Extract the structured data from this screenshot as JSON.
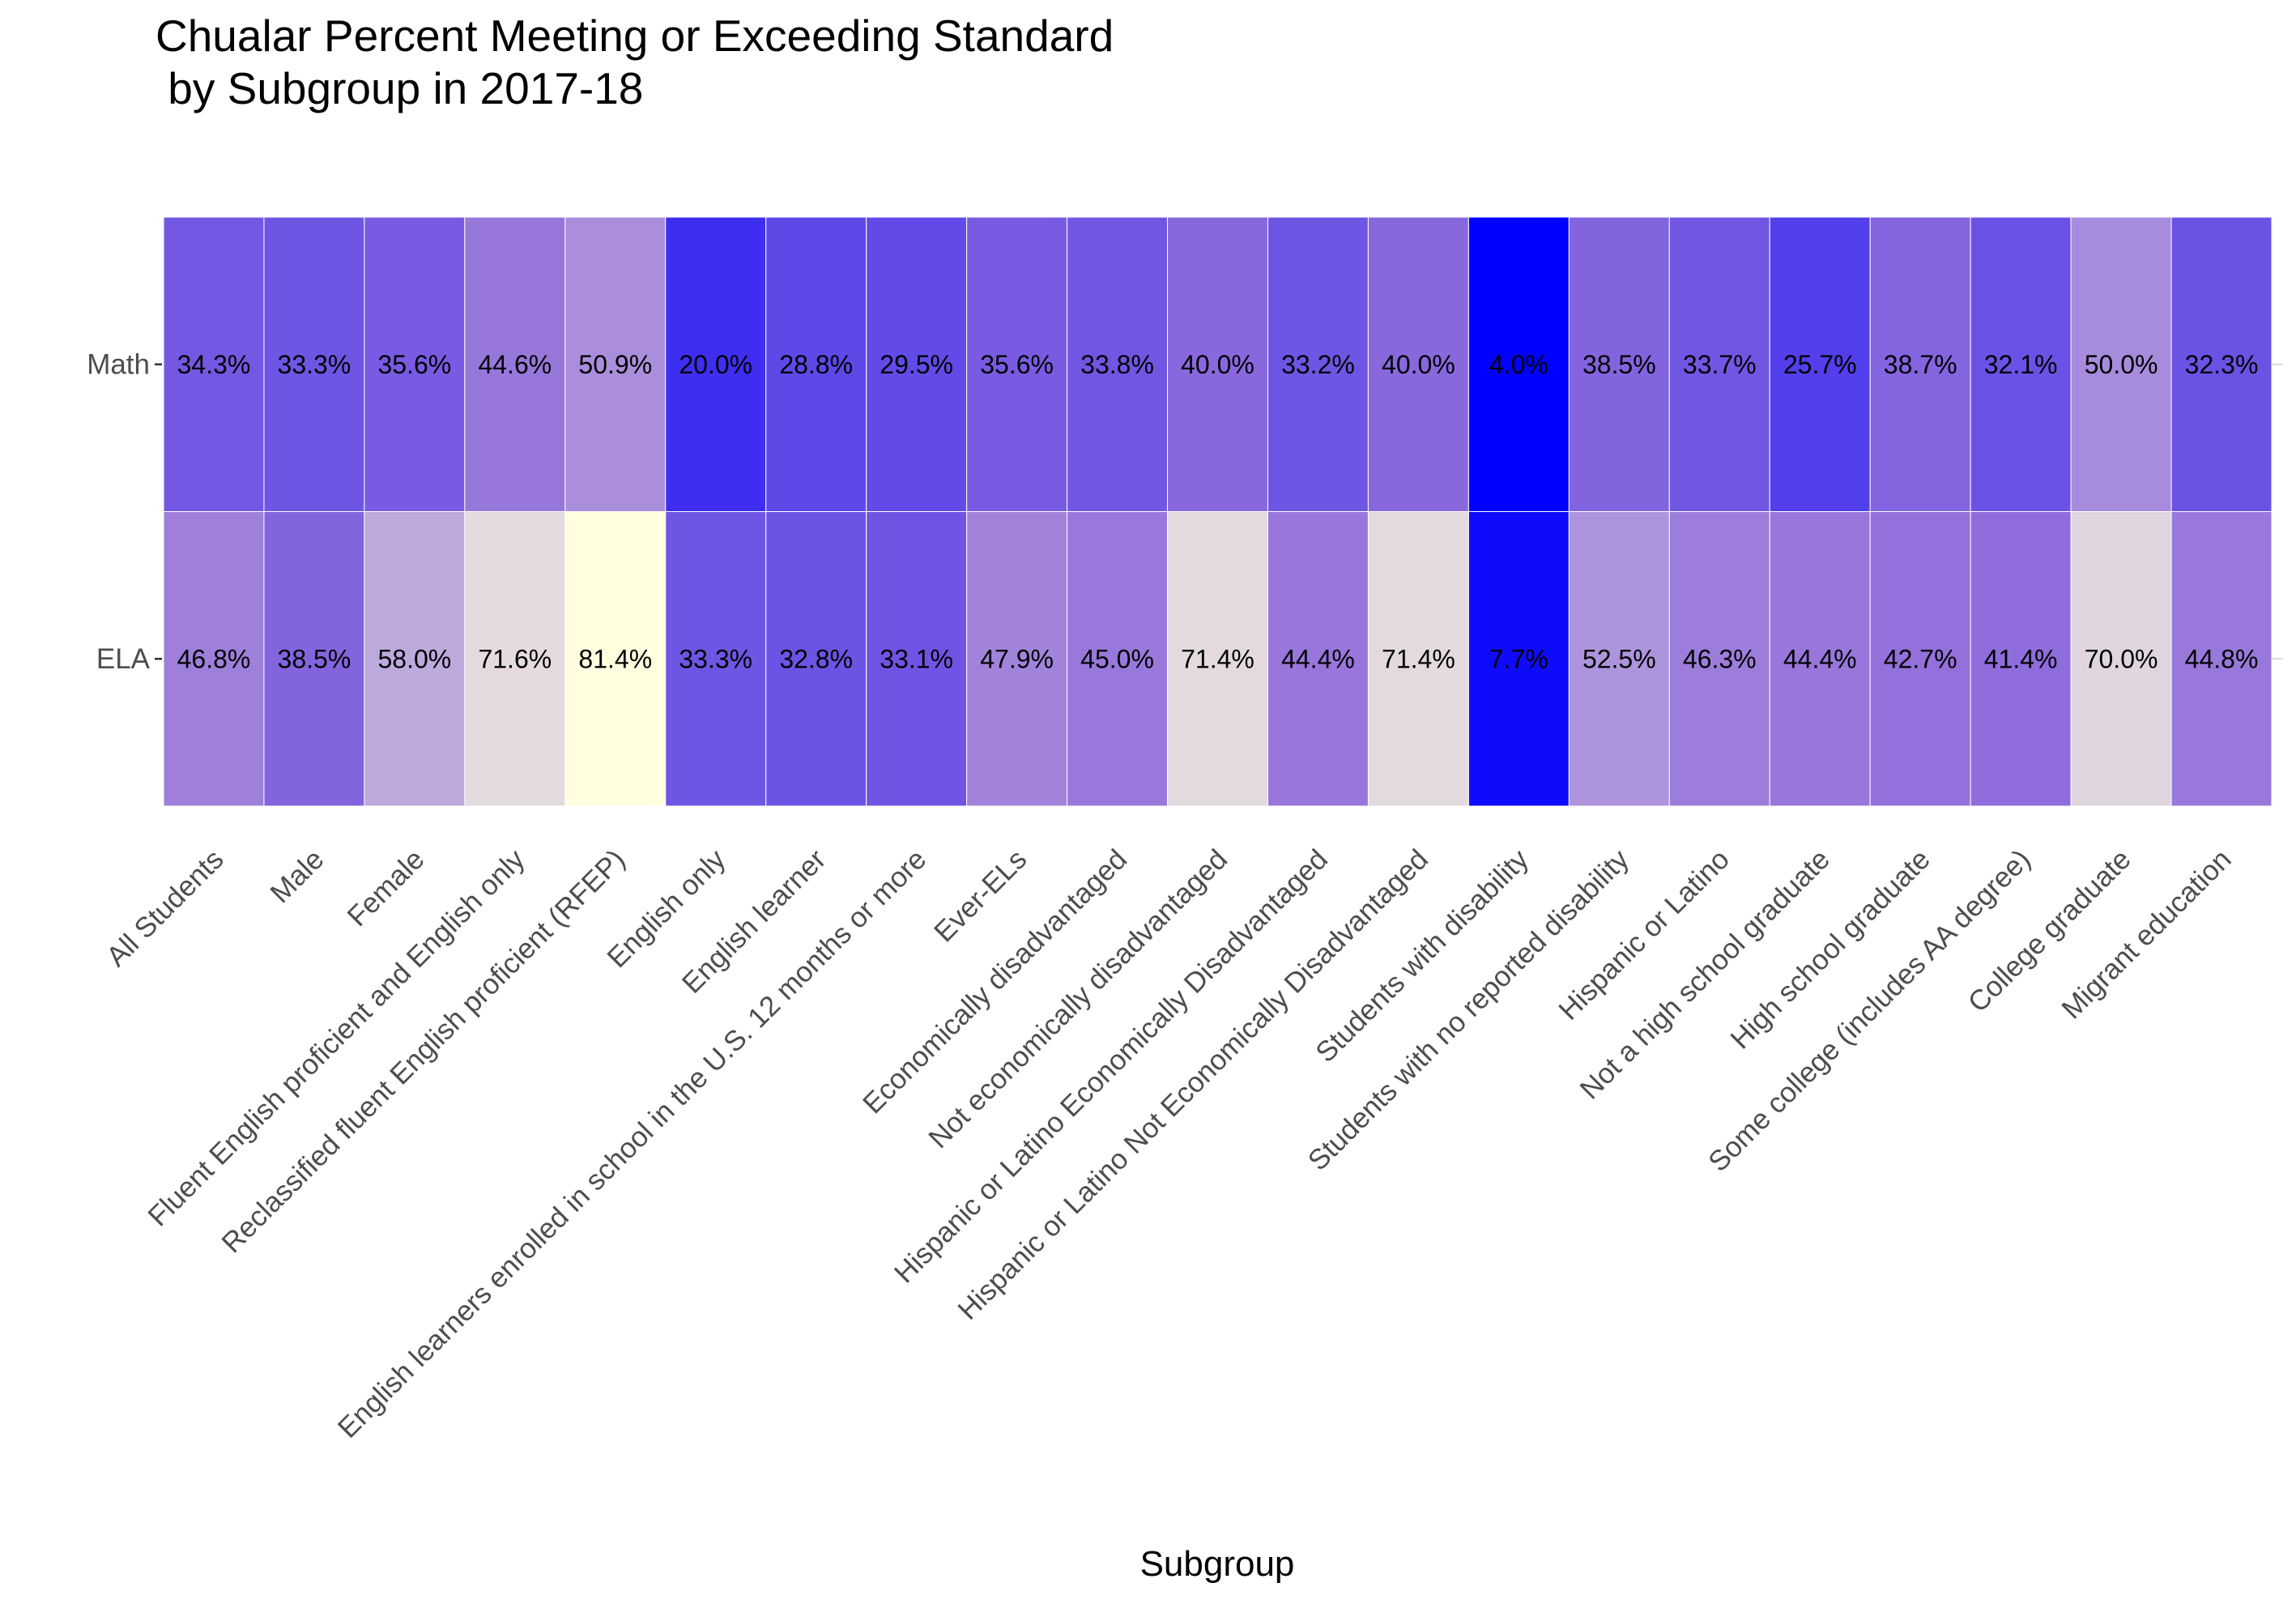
{
  "chart_data": {
    "type": "heatmap",
    "title": "Chualar Percent Meeting or Exceeding Standard",
    "subtitle": " by Subgroup in 2017-18",
    "xlabel": "Subgroup",
    "ylabel": "",
    "rows": [
      "Math",
      "ELA"
    ],
    "categories": [
      "All Students",
      "Male",
      "Female",
      "Fluent English proficient and English only",
      "Reclassified fluent English proficient (RFEP)",
      "English only",
      "English learner",
      "English learners enrolled in school in the U.S. 12 months or more",
      "Ever-ELs",
      "Economically disadvantaged",
      "Not economically disadvantaged",
      "Hispanic or Latino Economically Disadvantaged",
      "Hispanic or Latino Not Economically Disadvantaged",
      "Students with disability",
      "Students with no reported disability",
      "Hispanic or Latino",
      "Not a high school graduate",
      "High school graduate",
      "Some college (includes AA degree)",
      "College graduate",
      "Migrant education"
    ],
    "values": {
      "Math": [
        34.3,
        33.3,
        35.6,
        44.6,
        50.9,
        20.0,
        28.8,
        29.5,
        35.6,
        33.8,
        40.0,
        33.2,
        40.0,
        4.0,
        38.5,
        33.7,
        25.7,
        38.7,
        32.1,
        50.0,
        32.3
      ],
      "ELA": [
        46.8,
        38.5,
        58.0,
        71.6,
        81.4,
        33.3,
        32.8,
        33.1,
        47.9,
        45.0,
        71.4,
        44.4,
        71.4,
        7.7,
        52.5,
        46.3,
        44.4,
        42.7,
        41.4,
        70.0,
        44.8
      ]
    },
    "labels": {
      "Math": [
        "34.3%",
        "33.3%",
        "35.6%",
        "44.6%",
        "50.9%",
        "20.0%",
        "28.8%",
        "29.5%",
        "35.6%",
        "33.8%",
        "40.0%",
        "33.2%",
        "40.0%",
        "4.0%",
        "38.5%",
        "33.7%",
        "25.7%",
        "38.7%",
        "32.1%",
        "50.0%",
        "32.3%"
      ],
      "ELA": [
        "46.8%",
        "38.5%",
        "58.0%",
        "71.6%",
        "81.4%",
        "33.3%",
        "32.8%",
        "33.1%",
        "47.9%",
        "45.0%",
        "71.4%",
        "44.4%",
        "71.4%",
        "7.7%",
        "52.5%",
        "46.3%",
        "44.4%",
        "42.7%",
        "41.4%",
        "70.0%",
        "44.8%"
      ]
    },
    "color_scale": {
      "low": "#0000ff",
      "mid": "#9370db",
      "high": "#ffffe0"
    },
    "value_range": [
      4.0,
      81.4
    ],
    "grid": false,
    "legend": "none"
  }
}
